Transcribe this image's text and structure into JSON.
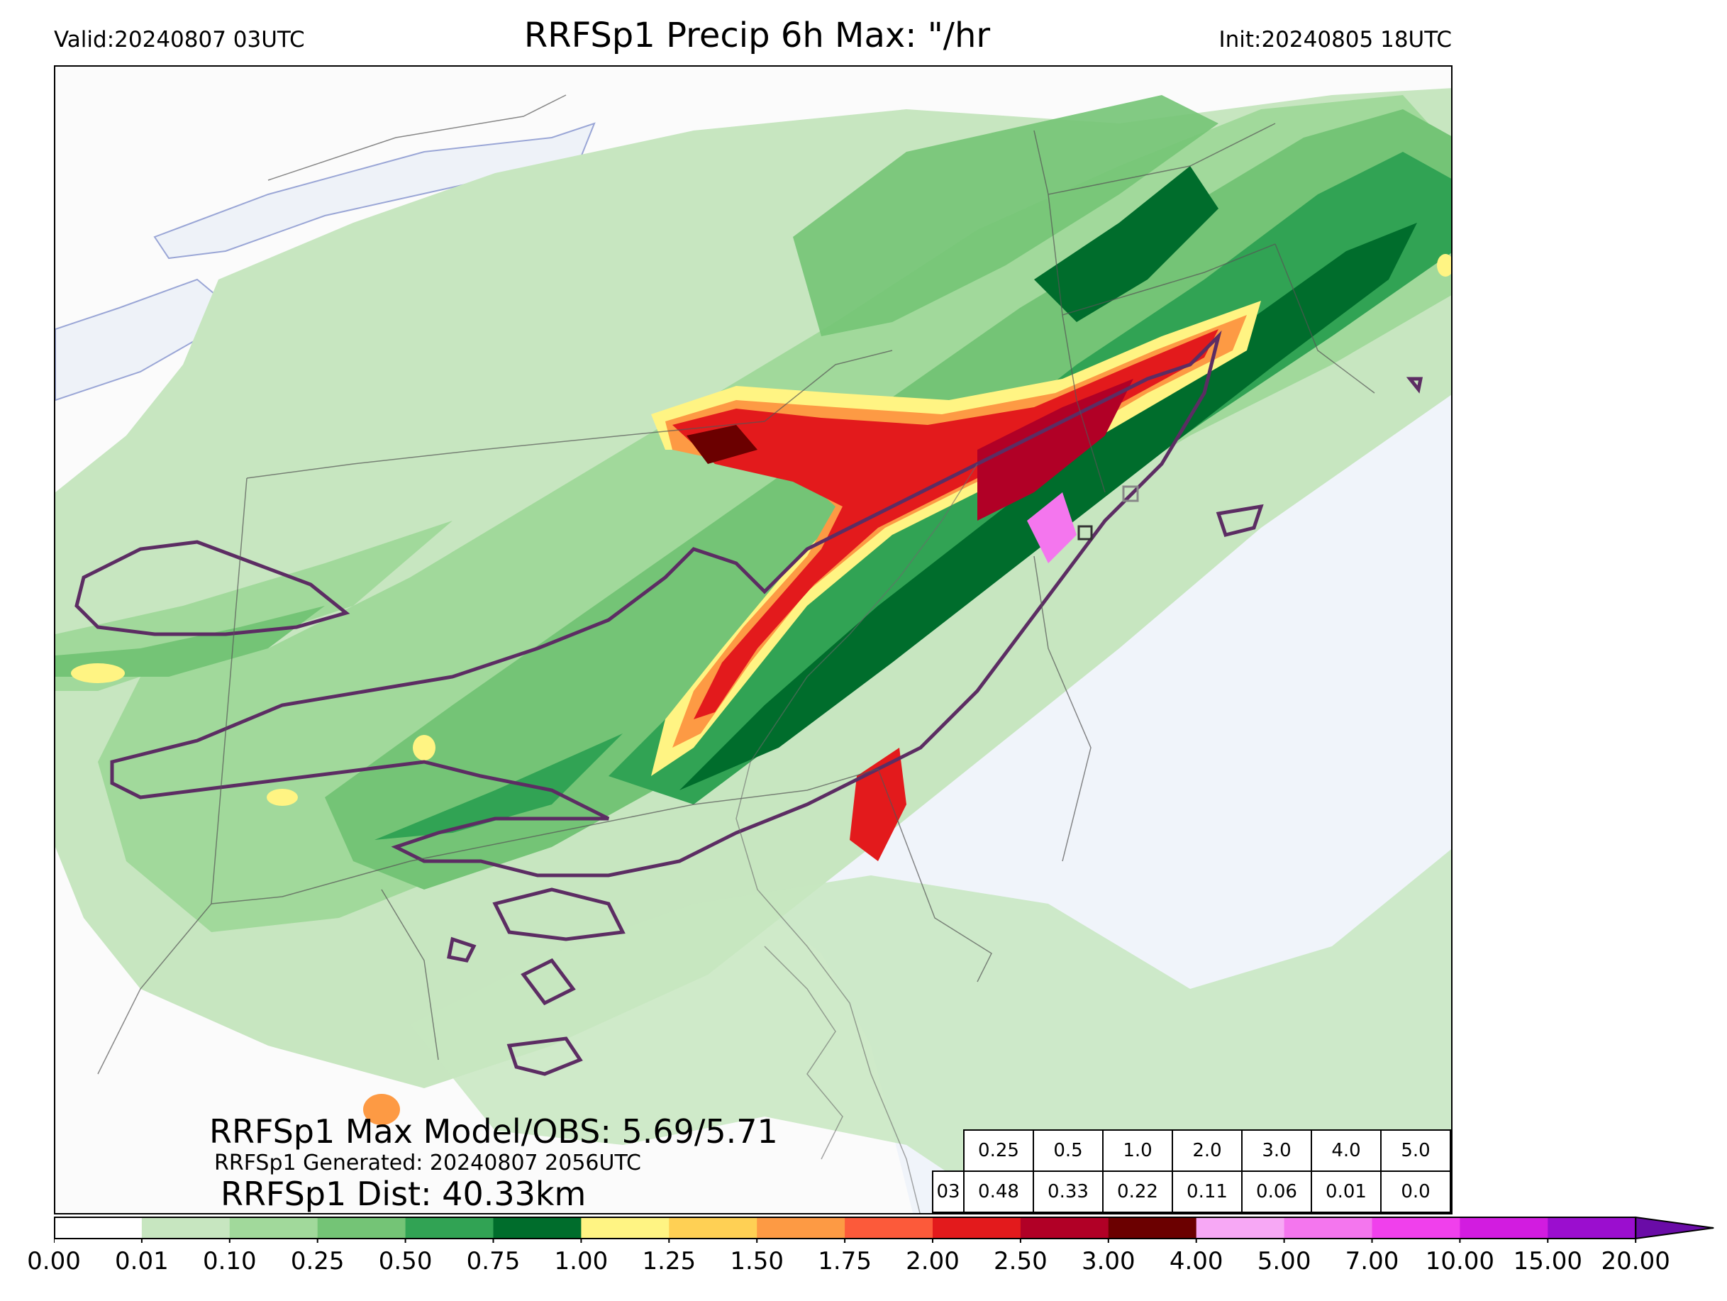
{
  "header": {
    "valid": "Valid:20240807 03UTC",
    "title": "RRFSp1 Precip 6h Max: \"/hr",
    "init": "Init:20240805 18UTC"
  },
  "annotations": {
    "max_line": "RRFSp1 Max Model/OBS: 5.69/5.71",
    "generated_line": "RRFSp1 Generated: 20240807 2056UTC",
    "dist_line": "RRFSp1 Dist: 40.33km"
  },
  "stats_table": {
    "thresholds": [
      "0.25",
      "0.5",
      "1.0",
      "2.0",
      "3.0",
      "4.0",
      "5.0"
    ],
    "row_label": "03",
    "values": [
      "0.48",
      "0.33",
      "0.22",
      "0.11",
      "0.06",
      "0.01",
      "0.0"
    ]
  },
  "colorbar": {
    "ticks": [
      "0.00",
      "0.01",
      "0.10",
      "0.25",
      "0.50",
      "0.75",
      "1.00",
      "1.25",
      "1.50",
      "1.75",
      "2.00",
      "2.50",
      "3.00",
      "4.00",
      "5.00",
      "7.00",
      "10.00",
      "15.00",
      "20.00"
    ],
    "colors": [
      "#ffffff",
      "#c7e6c0",
      "#a1d99b",
      "#74c476",
      "#31a354",
      "#006d2c",
      "#fff483",
      "#ffd054",
      "#fd9a44",
      "#fc5a3a",
      "#e31a1c",
      "#b10026",
      "#6b0000",
      "#f7a8f5",
      "#f476ee",
      "#f040ec",
      "#d21ce0",
      "#9b0ecf"
    ],
    "extend_color": "#6a0ca7"
  },
  "map": {
    "ocean_color": "#f0f4fa",
    "land_color": "#fbfbfb",
    "obs_contour_color": "#5c2d63"
  }
}
